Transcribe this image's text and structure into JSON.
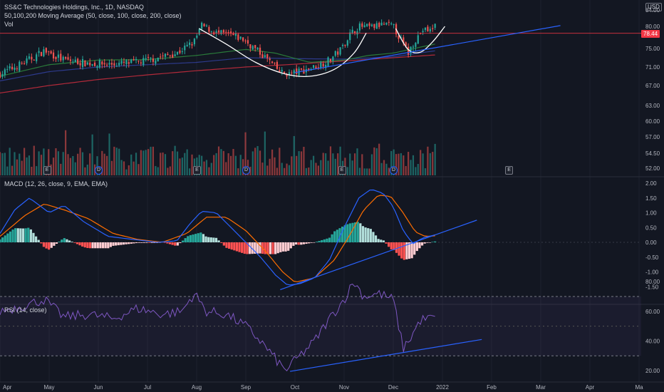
{
  "header": {
    "title": "SS&C Technologies Holdings, Inc., 1D, NASDAQ",
    "indicator_ma": "50,100,200 Moving Average (50, close, 100, close, 200, close)",
    "indicator_vol": "Vol",
    "currency": "USD",
    "last_price": "78.44"
  },
  "panels": {
    "macd_label": "MACD (12, 26, close, 9, EMA, EMA)",
    "rsi_label": "RSI (14, close)"
  },
  "events": [
    {
      "type": "E",
      "month_pos": 0.95
    },
    {
      "type": "D",
      "month_pos": 2.0
    },
    {
      "type": "E",
      "month_pos": 4.0
    },
    {
      "type": "D",
      "month_pos": 5.0
    },
    {
      "type": "E",
      "month_pos": 6.95
    },
    {
      "type": "D",
      "month_pos": 8.0
    },
    {
      "type": "E",
      "month_pos": 10.35
    }
  ],
  "colors": {
    "background": "#131722",
    "up": "#26a69a",
    "down": "#ef5350",
    "grid": "#1e222d",
    "axis_text": "#b2b5be",
    "ma50": "#2a7b3a",
    "ma100": "#2d3a8c",
    "ma200": "#b22a3a",
    "trendline": "#2962ff",
    "pattern": "#ffffff",
    "macd_line": "#2962ff",
    "signal_line": "#ff6d00",
    "rsi_line": "#7e57c2",
    "last_price": "#f23645"
  },
  "chart_data": [
    {
      "type": "candlestick",
      "title": "SS&C Technologies Holdings, Inc., 1D, NASDAQ",
      "x_ticks": [
        "Apr",
        "May",
        "Jun",
        "Jul",
        "Aug",
        "Sep",
        "Oct",
        "Nov",
        "Dec",
        "2022",
        "Feb",
        "Mar",
        "Apr",
        "Ma"
      ],
      "y_ticks": [
        84.0,
        80.0,
        75.0,
        71.0,
        67.0,
        63.0,
        60.0,
        57.0,
        54.5,
        52.0
      ],
      "close_anchors": [
        [
          0.0,
          69.5
        ],
        [
          0.5,
          72.0
        ],
        [
          0.9,
          74.5
        ],
        [
          1.3,
          72.5
        ],
        [
          1.8,
          71.8
        ],
        [
          2.3,
          71.6
        ],
        [
          2.8,
          72.0
        ],
        [
          3.2,
          73.0
        ],
        [
          3.6,
          74.0
        ],
        [
          3.95,
          76.5
        ],
        [
          4.1,
          80.2
        ],
        [
          4.4,
          78.5
        ],
        [
          4.7,
          78.0
        ],
        [
          4.95,
          77.0
        ],
        [
          5.2,
          74.8
        ],
        [
          5.45,
          72.6
        ],
        [
          5.7,
          69.8
        ],
        [
          5.9,
          69.5
        ],
        [
          6.15,
          70.2
        ],
        [
          6.4,
          71.0
        ],
        [
          6.7,
          72.5
        ],
        [
          6.95,
          75.0
        ],
        [
          7.1,
          78.0
        ],
        [
          7.3,
          80.0
        ],
        [
          7.55,
          79.8
        ],
        [
          7.8,
          80.5
        ],
        [
          8.0,
          80.0
        ],
        [
          8.15,
          77.0
        ],
        [
          8.3,
          74.0
        ],
        [
          8.42,
          76.5
        ],
        [
          8.6,
          79.2
        ],
        [
          8.75,
          79.0
        ],
        [
          8.85,
          80.3
        ]
      ],
      "ma50_anchors": [
        [
          0.0,
          69.0
        ],
        [
          1.0,
          71.5
        ],
        [
          2.0,
          72.5
        ],
        [
          3.0,
          72.6
        ],
        [
          4.0,
          73.5
        ],
        [
          5.0,
          74.8
        ],
        [
          5.6,
          74.0
        ],
        [
          6.3,
          72.0
        ],
        [
          7.0,
          72.5
        ],
        [
          7.5,
          73.5
        ],
        [
          8.0,
          74.0
        ],
        [
          8.85,
          76.0
        ]
      ],
      "ma100_anchors": [
        [
          0.0,
          68.0
        ],
        [
          1.0,
          70.0
        ],
        [
          2.0,
          71.0
        ],
        [
          3.0,
          71.5
        ],
        [
          4.0,
          72.0
        ],
        [
          5.0,
          73.0
        ],
        [
          6.0,
          72.8
        ],
        [
          7.0,
          72.7
        ],
        [
          8.0,
          73.2
        ],
        [
          8.85,
          74.5
        ]
      ],
      "ma200_anchors": [
        [
          0.0,
          65.5
        ],
        [
          1.0,
          67.0
        ],
        [
          2.0,
          68.3
        ],
        [
          3.0,
          69.3
        ],
        [
          4.0,
          70.2
        ],
        [
          5.0,
          71.0
        ],
        [
          6.0,
          71.6
        ],
        [
          7.0,
          72.3
        ],
        [
          8.0,
          73.0
        ],
        [
          8.85,
          73.6
        ]
      ],
      "horizontal_line": 78.44,
      "pattern_cup": [
        [
          4.05,
          79.5
        ],
        [
          4.6,
          76.0
        ],
        [
          5.2,
          72.0
        ],
        [
          5.8,
          69.5
        ],
        [
          6.3,
          69.0
        ],
        [
          6.8,
          70.5
        ],
        [
          7.2,
          74.0
        ],
        [
          7.45,
          78.5
        ]
      ],
      "pattern_handle": [
        [
          8.05,
          79.5
        ],
        [
          8.3,
          74.8
        ],
        [
          8.55,
          74.2
        ],
        [
          8.8,
          76.5
        ],
        [
          9.05,
          80.0
        ]
      ],
      "trendline": [
        [
          6.0,
          69.8
        ],
        [
          11.4,
          80.2
        ]
      ],
      "volume_range": [
        0,
        2.2
      ]
    },
    {
      "type": "line",
      "title": "MACD (12, 26, close, 9, EMA, EMA)",
      "y_ticks": [
        2.0,
        1.5,
        1.0,
        0.5,
        0.0,
        -0.5,
        -1.0,
        -1.5
      ],
      "ylim": [
        -1.75,
        2.1
      ],
      "macd_anchors": [
        [
          0.0,
          0.3
        ],
        [
          0.3,
          1.1
        ],
        [
          0.6,
          1.5
        ],
        [
          1.0,
          1.0
        ],
        [
          1.3,
          1.25
        ],
        [
          1.7,
          0.7
        ],
        [
          2.2,
          0.2
        ],
        [
          2.7,
          0.1
        ],
        [
          3.2,
          0.0
        ],
        [
          3.6,
          0.05
        ],
        [
          3.85,
          0.6
        ],
        [
          4.1,
          1.05
        ],
        [
          4.4,
          1.0
        ],
        [
          4.7,
          0.5
        ],
        [
          5.0,
          0.0
        ],
        [
          5.3,
          -0.5
        ],
        [
          5.6,
          -1.1
        ],
        [
          5.85,
          -1.45
        ],
        [
          6.1,
          -1.4
        ],
        [
          6.4,
          -1.2
        ],
        [
          6.7,
          -0.6
        ],
        [
          7.0,
          0.5
        ],
        [
          7.3,
          1.5
        ],
        [
          7.55,
          1.8
        ],
        [
          7.8,
          1.65
        ],
        [
          8.0,
          1.2
        ],
        [
          8.2,
          0.4
        ],
        [
          8.4,
          -0.05
        ],
        [
          8.6,
          0.15
        ],
        [
          8.85,
          0.25
        ]
      ],
      "signal_anchors": [
        [
          0.0,
          0.2
        ],
        [
          0.5,
          0.9
        ],
        [
          0.9,
          1.3
        ],
        [
          1.3,
          1.1
        ],
        [
          1.8,
          0.8
        ],
        [
          2.3,
          0.3
        ],
        [
          2.8,
          0.1
        ],
        [
          3.3,
          0.0
        ],
        [
          3.8,
          0.3
        ],
        [
          4.2,
          0.85
        ],
        [
          4.6,
          0.85
        ],
        [
          5.0,
          0.4
        ],
        [
          5.4,
          -0.3
        ],
        [
          5.75,
          -1.0
        ],
        [
          6.0,
          -1.35
        ],
        [
          6.4,
          -1.2
        ],
        [
          6.8,
          -0.6
        ],
        [
          7.1,
          0.2
        ],
        [
          7.4,
          1.1
        ],
        [
          7.7,
          1.6
        ],
        [
          7.95,
          1.55
        ],
        [
          8.2,
          1.0
        ],
        [
          8.45,
          0.35
        ],
        [
          8.65,
          0.2
        ],
        [
          8.85,
          0.22
        ]
      ],
      "trendline": [
        [
          5.7,
          -1.6
        ],
        [
          9.7,
          0.75
        ]
      ]
    },
    {
      "type": "line",
      "title": "RSI (14, close)",
      "y_ticks": [
        80.0,
        60.0,
        40.0,
        20.0
      ],
      "ylim": [
        15,
        85
      ],
      "band": [
        30,
        70
      ],
      "midline": 50,
      "rsi_anchors": [
        [
          0.0,
          60.0
        ],
        [
          0.5,
          64.0
        ],
        [
          0.9,
          68.0
        ],
        [
          1.3,
          56.0
        ],
        [
          1.8,
          58.0
        ],
        [
          2.3,
          55.0
        ],
        [
          2.8,
          62.0
        ],
        [
          3.3,
          58.0
        ],
        [
          3.7,
          60.0
        ],
        [
          3.95,
          72.0
        ],
        [
          4.2,
          60.0
        ],
        [
          4.6,
          58.0
        ],
        [
          5.0,
          50.0
        ],
        [
          5.3,
          40.0
        ],
        [
          5.6,
          28.0
        ],
        [
          5.8,
          20.0
        ],
        [
          6.1,
          30.0
        ],
        [
          6.4,
          40.0
        ],
        [
          6.7,
          55.0
        ],
        [
          7.0,
          68.0
        ],
        [
          7.2,
          80.0
        ],
        [
          7.4,
          70.0
        ],
        [
          7.7,
          72.0
        ],
        [
          8.0,
          68.0
        ],
        [
          8.2,
          35.0
        ],
        [
          8.35,
          42.0
        ],
        [
          8.55,
          54.0
        ],
        [
          8.85,
          56.0
        ]
      ],
      "trendline": [
        [
          5.9,
          19.5
        ],
        [
          9.8,
          41.0
        ]
      ]
    }
  ]
}
